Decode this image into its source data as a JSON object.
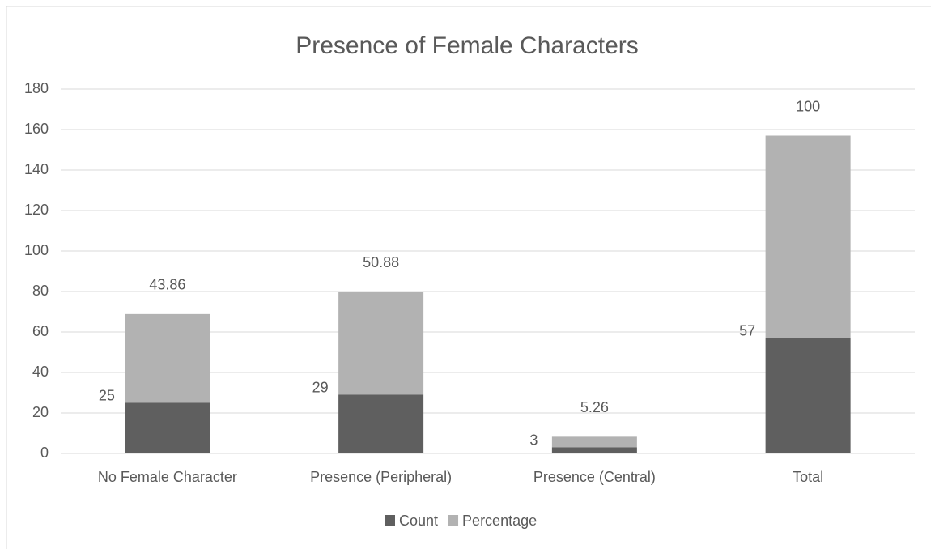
{
  "chart_data": {
    "type": "stacked_bar",
    "title": "Presence of Female Characters",
    "categories": [
      "No Female Character",
      "Presence (Peripheral)",
      "Presence (Central)",
      "Total"
    ],
    "series": [
      {
        "name": "Count",
        "color": "#5f5f5f",
        "values": [
          25,
          29,
          3,
          57
        ]
      },
      {
        "name": "Percentage",
        "color": "#b2b2b2",
        "values": [
          43.86,
          50.88,
          5.26,
          100
        ]
      }
    ],
    "ylim": [
      0,
      180
    ],
    "yticks": [
      0,
      20,
      40,
      60,
      80,
      100,
      120,
      140,
      160,
      180
    ],
    "grid": true,
    "legend": "bottom"
  }
}
